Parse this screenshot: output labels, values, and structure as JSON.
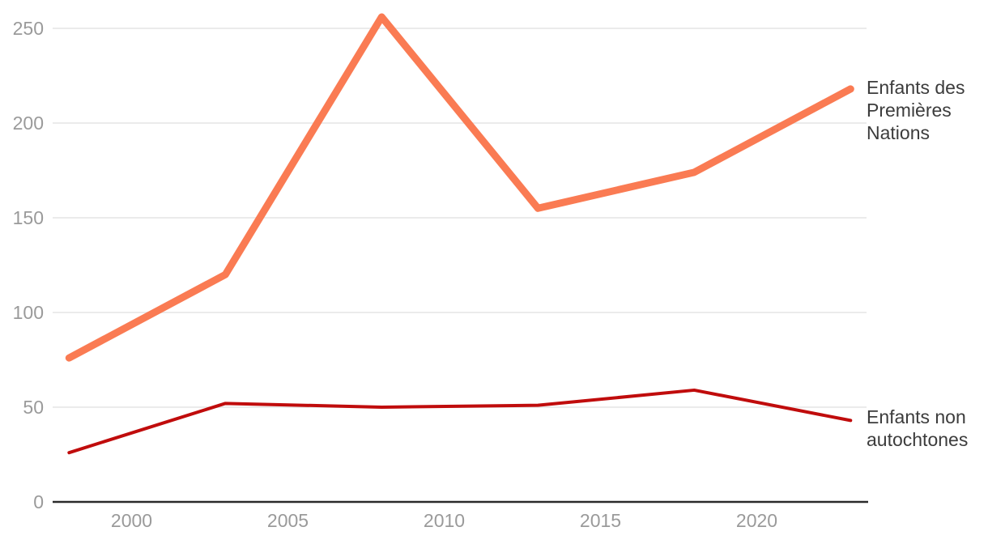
{
  "chart_data": {
    "type": "line",
    "x": [
      1998,
      2003,
      2008,
      2013,
      2018,
      2023
    ],
    "series": [
      {
        "name": "Enfants des Premières Nations",
        "values": [
          76,
          120,
          256,
          155,
          174,
          218
        ],
        "color": "#FA7B53",
        "stroke_width": 9
      },
      {
        "name": "Enfants non autochtones",
        "values": [
          26,
          52,
          50,
          51,
          59,
          43
        ],
        "color": "#C00C0C",
        "stroke_width": 4
      }
    ],
    "title": "",
    "xlabel": "",
    "ylabel": "",
    "x_ticks": [
      2000,
      2005,
      2010,
      2015,
      2020
    ],
    "y_ticks": [
      0,
      50,
      100,
      150,
      200,
      250
    ],
    "ylim": [
      0,
      250
    ],
    "xlim": [
      1997.5,
      2023.6
    ],
    "grid": "horizontal",
    "legend_position": "right-direct-labels",
    "colors": {
      "grid": "#EBEBEB",
      "axis": "#2A2A2A",
      "tick_label": "#9A9A9A",
      "series_label": "#3C3C3C",
      "background": "#FFFFFF"
    }
  }
}
